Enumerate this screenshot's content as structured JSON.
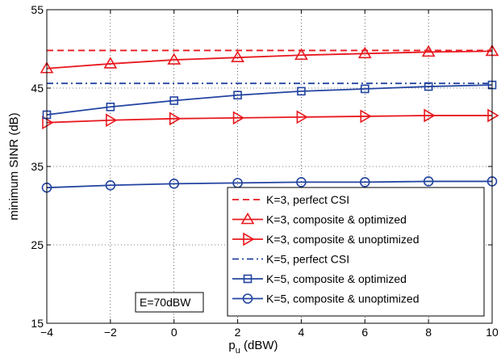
{
  "chart_data": {
    "type": "line",
    "title": "",
    "xlabel": "p",
    "xlabel_sub": "u",
    "xlabel_unit": " (dBW)",
    "ylabel": "minimum SINR (dB)",
    "xlim": [
      -4,
      10
    ],
    "ylim": [
      15,
      55
    ],
    "xticks": [
      -4,
      -2,
      0,
      2,
      4,
      6,
      8,
      10
    ],
    "yticks": [
      15,
      25,
      35,
      45,
      55
    ],
    "grid": true,
    "legend_position": "bottom-right",
    "annotation": "E=70dBW",
    "x": [
      -4,
      -2,
      0,
      2,
      4,
      6,
      8,
      10
    ],
    "series": [
      {
        "name": "K=3, perfect CSI",
        "color": "#e8191f",
        "line": "dashed",
        "marker": "none",
        "values": [
          49.8,
          49.8,
          49.8,
          49.8,
          49.8,
          49.8,
          49.8,
          49.8
        ]
      },
      {
        "name": "K=3, composite & optimized",
        "color": "#e8191f",
        "line": "solid",
        "marker": "triangle-up",
        "values": [
          47.5,
          48.1,
          48.6,
          48.9,
          49.2,
          49.4,
          49.6,
          49.7
        ]
      },
      {
        "name": "K=3, composite & unoptimized",
        "color": "#e8191f",
        "line": "solid",
        "marker": "triangle-right",
        "values": [
          40.6,
          40.9,
          41.1,
          41.2,
          41.3,
          41.4,
          41.5,
          41.5
        ]
      },
      {
        "name": "K=5, perfect CSI",
        "color": "#2344a0",
        "line": "dashdot",
        "marker": "none",
        "values": [
          45.6,
          45.6,
          45.6,
          45.6,
          45.6,
          45.6,
          45.6,
          45.6
        ]
      },
      {
        "name": "K=5, composite & optimized",
        "color": "#2344a0",
        "line": "solid",
        "marker": "square",
        "values": [
          41.6,
          42.6,
          43.4,
          44.1,
          44.6,
          44.9,
          45.2,
          45.4
        ]
      },
      {
        "name": "K=5, composite & unoptimized",
        "color": "#2344a0",
        "line": "solid",
        "marker": "circle",
        "values": [
          32.3,
          32.6,
          32.8,
          32.9,
          33.0,
          33.0,
          33.1,
          33.1
        ]
      }
    ]
  }
}
